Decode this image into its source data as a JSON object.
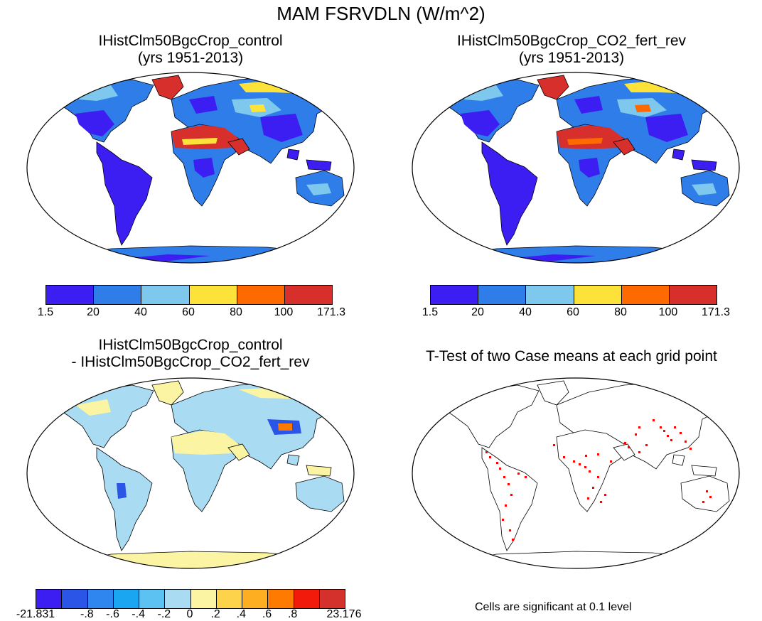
{
  "figure": {
    "title": "MAM FSRVDLN (W/m^2)"
  },
  "panels": {
    "top_left": {
      "title_line1": "IHistClm50BgcCrop_control",
      "title_line2": "(yrs 1951-2013)"
    },
    "top_right": {
      "title_line1": "IHistClm50BgcCrop_CO2_fert_rev",
      "title_line2": "(yrs 1951-2013)"
    },
    "bottom_left": {
      "title_line1": "IHistClm50BgcCrop_control",
      "title_line2": "- IHistClm50BgcCrop_CO2_fert_rev"
    },
    "bottom_right": {
      "title_line1": "T-Test of two Case means at each grid point",
      "note": "Cells are significant at 0.1 level"
    }
  },
  "colorbars": {
    "absolute": {
      "labels": [
        "1.5",
        "20",
        "40",
        "60",
        "80",
        "100",
        "171.3"
      ],
      "colors": [
        "#3d1ef2",
        "#2f7de8",
        "#7ec8ee",
        "#fde23a",
        "#ff6a00",
        "#d7302c"
      ]
    },
    "difference": {
      "labels": [
        "-21.831",
        "-.8",
        "-.6",
        "-.4",
        "-.2",
        "0",
        ".2",
        ".4",
        ".6",
        ".8",
        "23.176"
      ],
      "colors": [
        "#3d1ef2",
        "#2b55e6",
        "#2f86ee",
        "#1aa6f0",
        "#5cc2f2",
        "#a9dcf3",
        "#fbf4a2",
        "#fdd34b",
        "#fdae21",
        "#ff7a00",
        "#f21a0a",
        "#d4302c"
      ]
    }
  },
  "colors": {
    "significant": "#ff0000",
    "land_outline": "#000000"
  }
}
